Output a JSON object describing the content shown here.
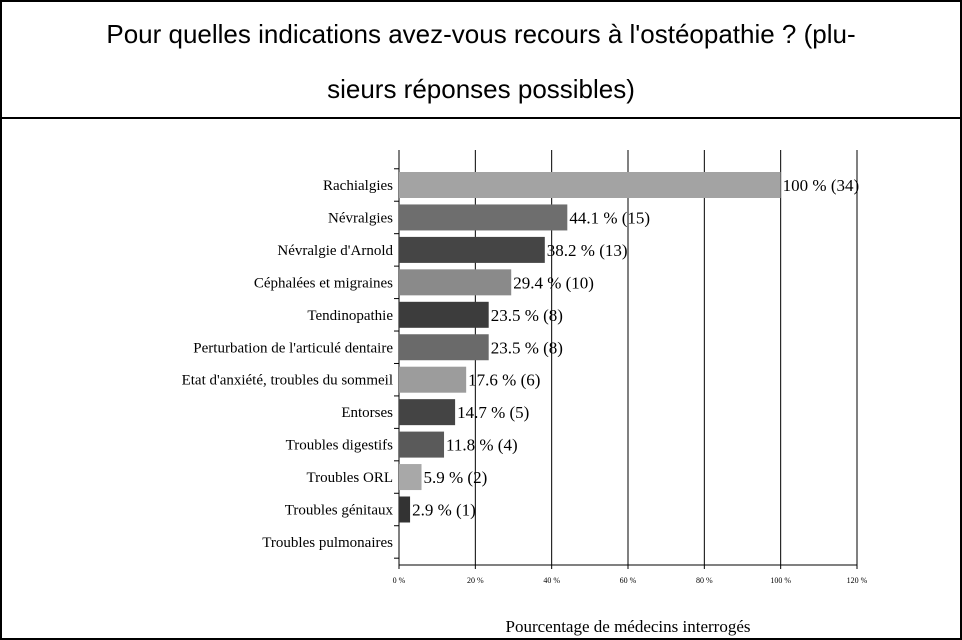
{
  "chart_data": {
    "type": "bar",
    "orientation": "horizontal",
    "title": [
      "Pour quelles indications avez-vous recours à l'ostéopathie ? (plu-",
      "sieurs réponses possibles)"
    ],
    "xlabel": "Pourcentage de médecins interrogés",
    "categories": [
      "Rachialgies",
      "Névralgies",
      "Névralgie d'Arnold",
      "Céphalées et migraines",
      "Tendinopathie",
      "Perturbation de l'articulé dentaire",
      "Etat d'anxiété, troubles du sommeil",
      "Entorses",
      "Troubles digestifs",
      "Troubles ORL",
      "Troubles génitaux",
      "Troubles pulmonaires"
    ],
    "values": [
      100,
      44.1,
      38.2,
      29.4,
      23.5,
      23.5,
      17.6,
      14.7,
      11.8,
      5.9,
      2.9,
      0
    ],
    "value_labels": [
      "100 % (34)",
      "44.1 % (15)",
      "38.2 % (13)",
      "29.4 % (10)",
      "23.5 % (8)",
      "23.5 % (8)",
      "17.6 % (6)",
      "14.7 % (5)",
      "11.8 % (4)",
      "5.9 % (2)",
      "2.9 % (1)",
      null
    ],
    "colors": [
      "#a3a3a3",
      "#6e6e6e",
      "#454545",
      "#8a8a8a",
      "#3c3c3c",
      "#6a6a6a",
      "#9c9c9c",
      "#444444",
      "#5a5a5a",
      "#a8a8a8",
      "#333333",
      "#888888"
    ],
    "xlim": [
      0,
      120
    ],
    "xticks": [
      {
        "value": 0,
        "label": "0 %"
      },
      {
        "value": 20,
        "label": "20 %"
      },
      {
        "value": 40,
        "label": "40 %"
      },
      {
        "value": 60,
        "label": "60 %"
      },
      {
        "value": 80,
        "label": "80 %"
      },
      {
        "value": 100,
        "label": "100 %"
      },
      {
        "value": 120,
        "label": "120 %"
      }
    ],
    "grid": true
  }
}
